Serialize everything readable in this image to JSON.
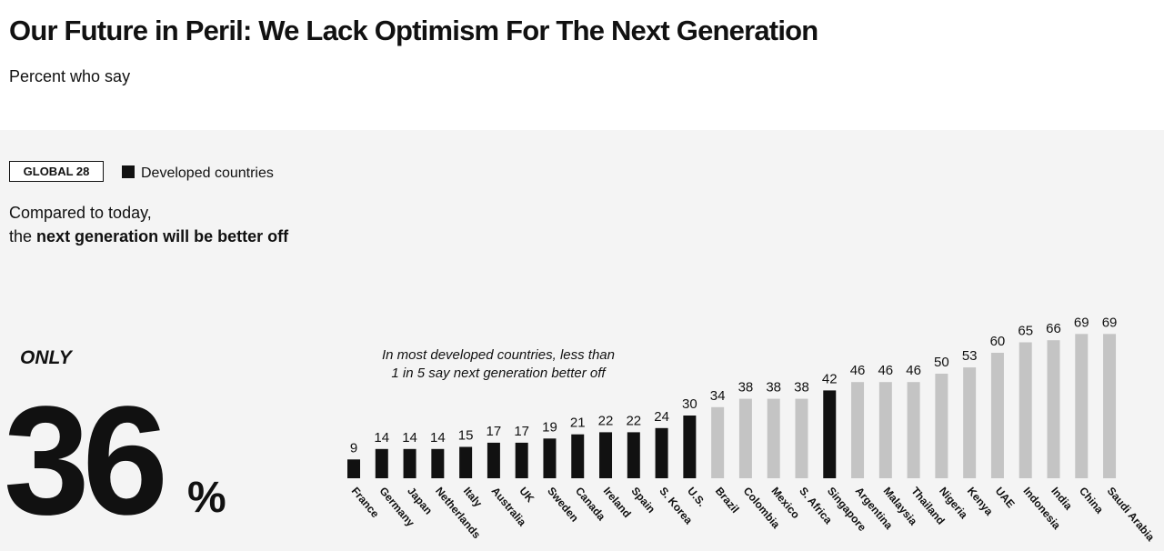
{
  "header": {
    "title": "Our Future in Peril: We Lack Optimism For The Next Generation",
    "subtitle": "Percent who say"
  },
  "badge": "GLOBAL 28",
  "question": {
    "line1": "Compared to today,",
    "line2_prefix": "the",
    "line2_bold": "next generation will be better off"
  },
  "headline": {
    "prefix": "ONLY",
    "value": 36,
    "unit": "%"
  },
  "chart_data": {
    "type": "bar",
    "annotation": [
      "In most developed countries, less than",
      "1 in 5 say next generation better off"
    ],
    "legend": {
      "label": "Developed countries",
      "color": "#111111"
    },
    "categories": [
      "France",
      "Germany",
      "Japan",
      "Netherlands",
      "Italy",
      "Australia",
      "UK",
      "Sweden",
      "Canada",
      "Ireland",
      "Spain",
      "S. Korea",
      "U.S.",
      "Brazil",
      "Colombia",
      "Mexico",
      "S. Africa",
      "Singapore",
      "Argentina",
      "Malaysia",
      "Thailand",
      "Nigeria",
      "Kenya",
      "UAE",
      "Indonesia",
      "India",
      "China",
      "Saudi Arabia"
    ],
    "values": [
      9,
      14,
      14,
      14,
      15,
      17,
      17,
      19,
      21,
      22,
      22,
      24,
      30,
      34,
      38,
      38,
      38,
      42,
      46,
      46,
      46,
      50,
      53,
      60,
      65,
      66,
      69,
      69
    ],
    "colors": [
      "#111111",
      "#111111",
      "#111111",
      "#111111",
      "#111111",
      "#111111",
      "#111111",
      "#111111",
      "#111111",
      "#111111",
      "#111111",
      "#111111",
      "#111111",
      "#c4c4c4",
      "#c4c4c4",
      "#c4c4c4",
      "#c4c4c4",
      "#111111",
      "#c4c4c4",
      "#c4c4c4",
      "#c4c4c4",
      "#c4c4c4",
      "#c4c4c4",
      "#c4c4c4",
      "#c4c4c4",
      "#c4c4c4",
      "#c4c4c4",
      "#c4c4c4"
    ]
  }
}
